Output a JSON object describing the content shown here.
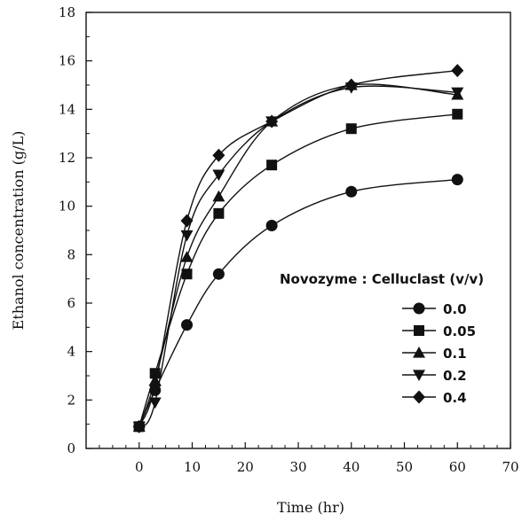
{
  "chart_data": {
    "type": "line",
    "title": "",
    "xlabel": "Time (hr)",
    "ylabel": "Ethanol concentration (g/L)",
    "xlim": [
      -10,
      70
    ],
    "ylim": [
      0,
      18
    ],
    "xticks": [
      0,
      10,
      20,
      30,
      40,
      50,
      60,
      70
    ],
    "yticks": [
      0,
      2,
      4,
      6,
      8,
      10,
      12,
      14,
      16,
      18
    ],
    "x": [
      0,
      3,
      9,
      15,
      25,
      40,
      60
    ],
    "legend_title": "Novozyme : Celluclast (v/v)",
    "legend_position": "right",
    "grid": false,
    "series": [
      {
        "name": "0.0",
        "marker": "circle",
        "values": [
          0.9,
          2.4,
          5.1,
          7.2,
          9.2,
          10.6,
          11.1
        ]
      },
      {
        "name": "0.05",
        "marker": "square",
        "values": [
          0.9,
          3.1,
          7.2,
          9.7,
          11.7,
          13.2,
          13.8
        ]
      },
      {
        "name": "0.1",
        "marker": "triangle-up",
        "values": [
          0.9,
          2.8,
          7.9,
          10.4,
          13.5,
          15.0,
          14.6
        ]
      },
      {
        "name": "0.2",
        "marker": "triangle-down",
        "values": [
          0.9,
          1.9,
          8.8,
          11.3,
          13.5,
          14.9,
          14.7
        ]
      },
      {
        "name": "0.4",
        "marker": "diamond",
        "values": [
          0.9,
          2.6,
          9.4,
          12.1,
          13.5,
          15.0,
          15.6
        ]
      }
    ]
  }
}
